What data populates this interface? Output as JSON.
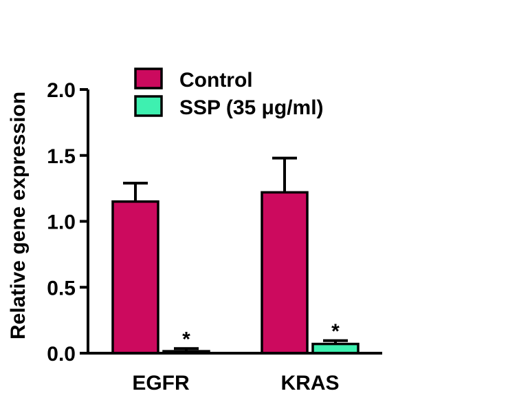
{
  "chart_data": {
    "type": "bar",
    "ylabel": "Relative gene expression",
    "ylim": [
      0,
      2.0
    ],
    "yticks": [
      "0.0",
      "0.5",
      "1.0",
      "1.5",
      "2.0"
    ],
    "ytick_values": [
      0,
      0.5,
      1.0,
      1.5,
      2.0
    ],
    "categories": [
      "EGFR",
      "KRAS"
    ],
    "legend_position": "top",
    "series": [
      {
        "name": "Control",
        "color": "#cc0a5e",
        "values": [
          1.15,
          1.22
        ],
        "errors": [
          0.14,
          0.26
        ],
        "annotations": [
          "",
          ""
        ]
      },
      {
        "name": "SSP (35 μg/ml)",
        "color": "#3ef0b0",
        "values": [
          0.015,
          0.07
        ],
        "errors": [
          0.02,
          0.025
        ],
        "annotations": [
          "*",
          "*"
        ]
      }
    ]
  }
}
